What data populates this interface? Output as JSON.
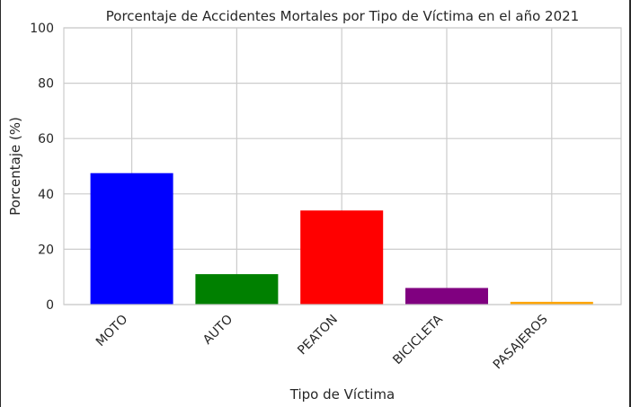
{
  "chart_data": {
    "type": "bar",
    "title": "Porcentaje de Accidentes Mortales por Tipo de Víctima en el año 2021",
    "xlabel": "Tipo de Víctima",
    "ylabel": "Porcentaje (%)",
    "ylim": [
      0,
      100
    ],
    "yticks": [
      0,
      20,
      40,
      60,
      80,
      100
    ],
    "categories": [
      "MOTO",
      "AUTO",
      "PEATON",
      "BICICLETA",
      "PASAJEROS"
    ],
    "values": [
      47.5,
      11,
      34,
      6,
      1
    ],
    "colors": [
      "#0000ff",
      "#008000",
      "#ff0000",
      "#800080",
      "#ffa500"
    ],
    "grid": true,
    "legend": "none"
  }
}
